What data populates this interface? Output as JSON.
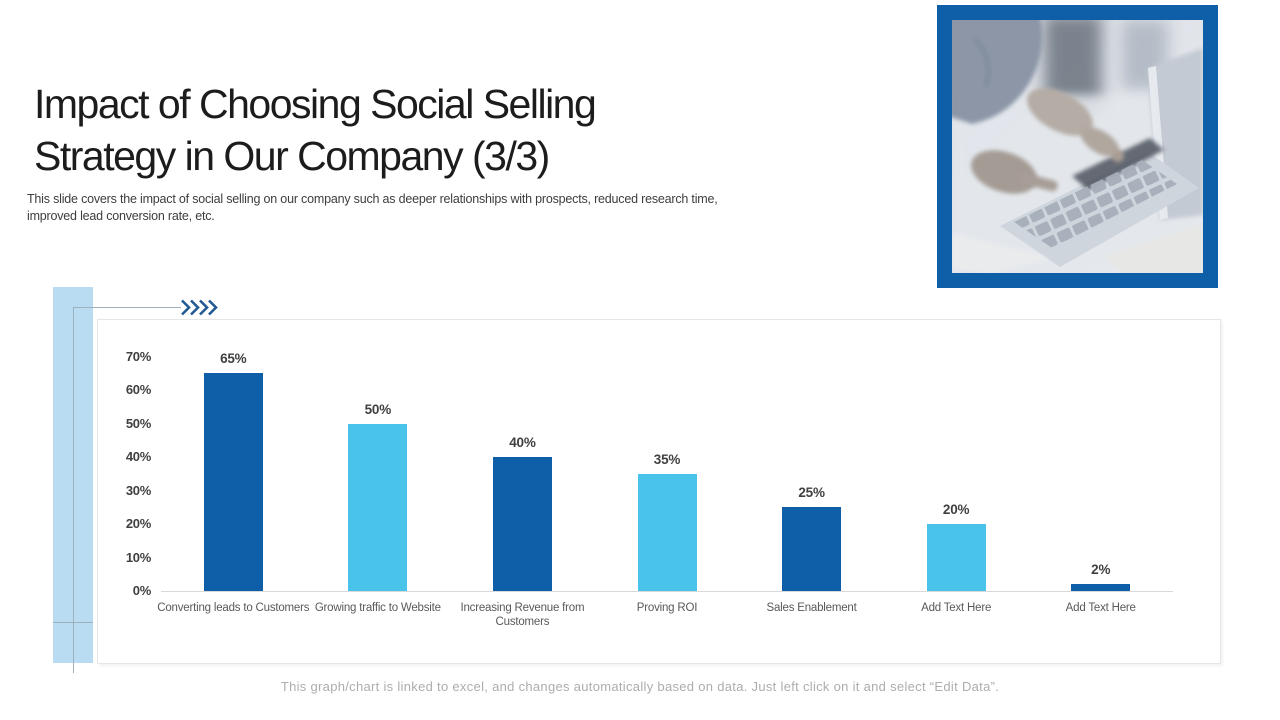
{
  "header": {
    "title_line1": "Impact of Choosing Social Selling",
    "title_line2": "Strategy in Our Company (3/3)",
    "subtitle": "This slide covers the impact of social selling on our company such as deeper relationships with prospects, reduced research time, improved lead conversion rate, etc."
  },
  "icons": {
    "arrows": "chevron-right-x4",
    "photo": "hands-typing-on-laptop"
  },
  "colors": {
    "accent_dark_blue": "#0E5FA8",
    "accent_light_blue": "#49C3EA",
    "decor_light_blue": "#BADCF3",
    "frame_blue": "#0E5FA8",
    "axis_text": "#404040",
    "category_text": "#595959",
    "footer_text": "#ADADAD"
  },
  "chart_data": {
    "type": "bar",
    "title": "",
    "xlabel": "",
    "ylabel": "",
    "categories": [
      "Converting leads to Customers",
      "Growing traffic to Website",
      "Increasing Revenue from Customers",
      "Proving ROI",
      "Sales Enablement",
      "Add Text Here",
      "Add Text Here"
    ],
    "values": [
      65,
      50,
      40,
      35,
      25,
      20,
      2
    ],
    "value_labels": [
      "65%",
      "50%",
      "40%",
      "35%",
      "25%",
      "20%",
      "2%"
    ],
    "bar_colors": [
      "#0E5FA8",
      "#49C3EA",
      "#0E5FA8",
      "#49C3EA",
      "#0E5FA8",
      "#49C3EA",
      "#0E5FA8"
    ],
    "y_ticks": [
      70,
      60,
      50,
      40,
      30,
      20,
      10,
      0
    ],
    "y_tick_labels": [
      "70%",
      "60%",
      "50%",
      "40%",
      "30%",
      "20%",
      "10%",
      "0%"
    ],
    "ylim": [
      0,
      70
    ],
    "grid": false,
    "legend": "none"
  },
  "footer": {
    "note": "This graph/chart is linked to excel, and changes automatically based on data. Just left click on it and select “Edit Data”."
  }
}
